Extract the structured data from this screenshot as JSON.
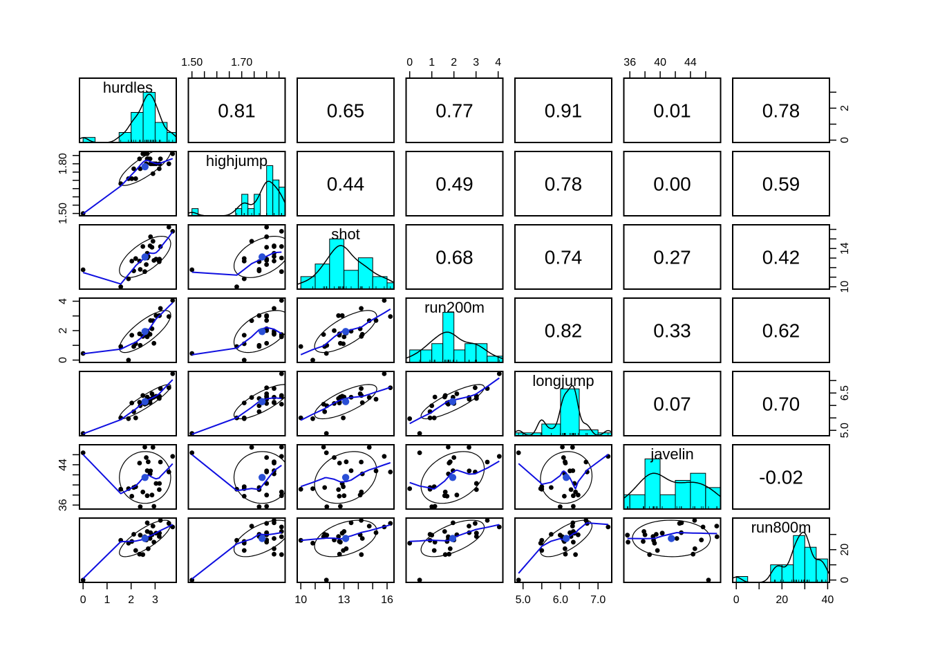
{
  "chart_data": {
    "type": "scatterplot-matrix",
    "description": "pairs.panels style matrix: histograms with density on diagonal, correlations in upper triangle, scatterplots with lowess line, correlation ellipse and mean point in lower triangle",
    "variables": [
      "hurdles",
      "highjump",
      "shot",
      "run200m",
      "longjump",
      "javelin",
      "run800m"
    ],
    "diagonal_labels": [
      "hurdles",
      "highjump",
      "shot",
      "run200m",
      "longjump",
      "javelin",
      "run800m"
    ],
    "correlations": [
      {
        "row": 0,
        "col": 1,
        "label": "0.81"
      },
      {
        "row": 0,
        "col": 2,
        "label": "0.65"
      },
      {
        "row": 0,
        "col": 3,
        "label": "0.77"
      },
      {
        "row": 0,
        "col": 4,
        "label": "0.91"
      },
      {
        "row": 0,
        "col": 5,
        "label": "0.01"
      },
      {
        "row": 0,
        "col": 6,
        "label": "0.78"
      },
      {
        "row": 1,
        "col": 2,
        "label": "0.44"
      },
      {
        "row": 1,
        "col": 3,
        "label": "0.49"
      },
      {
        "row": 1,
        "col": 4,
        "label": "0.78"
      },
      {
        "row": 1,
        "col": 5,
        "label": "0.00"
      },
      {
        "row": 1,
        "col": 6,
        "label": "0.59"
      },
      {
        "row": 2,
        "col": 3,
        "label": "0.68"
      },
      {
        "row": 2,
        "col": 4,
        "label": "0.74"
      },
      {
        "row": 2,
        "col": 5,
        "label": "0.27"
      },
      {
        "row": 2,
        "col": 6,
        "label": "0.42"
      },
      {
        "row": 3,
        "col": 4,
        "label": "0.82"
      },
      {
        "row": 3,
        "col": 5,
        "label": "0.33"
      },
      {
        "row": 3,
        "col": 6,
        "label": "0.62"
      },
      {
        "row": 4,
        "col": 5,
        "label": "0.07"
      },
      {
        "row": 4,
        "col": 6,
        "label": "0.70"
      },
      {
        "row": 5,
        "col": 6,
        "label": "-0.02"
      }
    ],
    "points": {
      "hurdles": [
        3.73,
        3.57,
        3.22,
        2.81,
        2.91,
        2.67,
        3.04,
        2.87,
        2.79,
        3.17,
        2.67,
        3.18,
        2.57,
        2.71,
        2.63,
        2.49,
        2.95,
        2.35,
        2.03,
        2.38,
        2.11,
        2.19,
        1.57,
        1.89,
        0.0
      ],
      "highjump": [
        1.86,
        1.8,
        1.83,
        1.8,
        1.74,
        1.83,
        1.8,
        1.8,
        1.83,
        1.77,
        1.86,
        1.8,
        1.86,
        1.83,
        1.8,
        1.86,
        1.8,
        1.83,
        1.71,
        1.77,
        1.77,
        1.71,
        1.68,
        1.71,
        1.5
      ],
      "shot": [
        15.8,
        16.23,
        14.2,
        15.23,
        14.76,
        13.5,
        12.88,
        14.13,
        14.28,
        12.62,
        13.01,
        12.88,
        11.58,
        13.16,
        12.32,
        14.21,
        12.75,
        12.69,
        12.68,
        11.81,
        11.66,
        12.95,
        10.0,
        10.83,
        11.78
      ],
      "run200m": [
        4.05,
        2.96,
        3.51,
        2.69,
        2.68,
        1.96,
        3.02,
        2.13,
        1.75,
        3.02,
        1.58,
        3.02,
        1.74,
        1.83,
        2.0,
        1.61,
        1.14,
        1.78,
        1.69,
        1.0,
        0.92,
        1.11,
        0.92,
        0.0,
        0.45
      ],
      "longjump": [
        7.27,
        6.71,
        6.68,
        6.25,
        6.32,
        6.33,
        6.37,
        6.47,
        6.11,
        6.28,
        6.34,
        6.37,
        6.05,
        6.12,
        6.08,
        6.4,
        6.34,
        6.13,
        6.1,
        5.99,
        5.75,
        5.5,
        5.5,
        5.47,
        4.88
      ],
      "javelin": [
        45.66,
        42.56,
        44.54,
        42.78,
        47.46,
        42.82,
        40.28,
        38.0,
        42.2,
        39.06,
        37.86,
        40.28,
        47.5,
        44.58,
        45.44,
        38.6,
        35.76,
        44.34,
        37.76,
        35.68,
        39.48,
        39.64,
        39.14,
        39.26,
        46.38
      ],
      "run800m": [
        34.92,
        37.31,
        39.23,
        31.19,
        35.53,
        37.64,
        30.89,
        29.78,
        27.38,
        28.69,
        31.94,
        30.89,
        28.5,
        20.61,
        26.37,
        16.76,
        24.95,
        17.0,
        25.41,
        29.53,
        30.08,
        19.41,
        26.13,
        24.26,
        0.0
      ]
    },
    "histogram_breaks": {
      "hurdles": {
        "start": 0,
        "width": 0.5
      },
      "highjump": {
        "start": 1.5,
        "width": 0.025
      },
      "shot": {
        "start": 10,
        "width": 1
      },
      "run200m": {
        "start": 0,
        "width": 0.5
      },
      "longjump": {
        "start": 4.5,
        "width": 0.5
      },
      "javelin": {
        "start": 34,
        "width": 2
      },
      "run800m": {
        "start": 0,
        "width": 5
      }
    },
    "axes": {
      "top": [
        {
          "col": 1,
          "ticks": [
            1.5,
            1.55,
            1.6,
            1.65,
            1.7,
            1.75,
            1.8,
            1.85
          ],
          "labels": [
            {
              "v": 1.5,
              "t": "1.50"
            },
            {
              "v": 1.7,
              "t": "1.70"
            }
          ]
        },
        {
          "col": 3,
          "ticks": [
            0,
            1,
            2,
            3,
            4
          ],
          "labels": [
            {
              "v": 0,
              "t": "0"
            },
            {
              "v": 1,
              "t": "1"
            },
            {
              "v": 2,
              "t": "2"
            },
            {
              "v": 3,
              "t": "3"
            },
            {
              "v": 4,
              "t": "4"
            }
          ]
        },
        {
          "col": 5,
          "ticks": [
            36,
            38,
            40,
            42,
            44,
            46
          ],
          "labels": [
            {
              "v": 36,
              "t": "36"
            },
            {
              "v": 40,
              "t": "40"
            },
            {
              "v": 44,
              "t": "44"
            }
          ]
        }
      ],
      "bottom": [
        {
          "col": 0,
          "ticks": [
            0,
            1,
            2,
            3
          ],
          "labels": [
            {
              "v": 0,
              "t": "0"
            },
            {
              "v": 1,
              "t": "1"
            },
            {
              "v": 2,
              "t": "2"
            },
            {
              "v": 3,
              "t": "3"
            }
          ]
        },
        {
          "col": 2,
          "ticks": [
            10,
            11,
            12,
            13,
            14,
            15,
            16
          ],
          "labels": [
            {
              "v": 10,
              "t": "10"
            },
            {
              "v": 13,
              "t": "13"
            },
            {
              "v": 16,
              "t": "16"
            }
          ]
        },
        {
          "col": 4,
          "ticks": [
            5.0,
            5.5,
            6.0,
            6.5,
            7.0
          ],
          "labels": [
            {
              "v": 5.0,
              "t": "5.0"
            },
            {
              "v": 6.0,
              "t": "6.0"
            },
            {
              "v": 7.0,
              "t": "7.0"
            }
          ]
        },
        {
          "col": 6,
          "ticks": [
            0,
            10,
            20,
            30,
            40
          ],
          "labels": [
            {
              "v": 0,
              "t": "0"
            },
            {
              "v": 20,
              "t": "20"
            },
            {
              "v": 40,
              "t": "40"
            }
          ]
        }
      ],
      "left": [
        {
          "row": 1,
          "ticks": [
            1.5,
            1.55,
            1.6,
            1.65,
            1.7,
            1.75,
            1.8,
            1.85
          ],
          "labels": [
            {
              "v": 1.5,
              "t": "1.50"
            },
            {
              "v": 1.8,
              "t": "1.80"
            }
          ]
        },
        {
          "row": 3,
          "ticks": [
            0,
            1,
            2,
            3,
            4
          ],
          "labels": [
            {
              "v": 0,
              "t": "0"
            },
            {
              "v": 2,
              "t": "2"
            },
            {
              "v": 4,
              "t": "4"
            }
          ]
        },
        {
          "row": 5,
          "ticks": [
            36,
            38,
            40,
            42,
            44,
            46
          ],
          "labels": [
            {
              "v": 36,
              "t": "36"
            },
            {
              "v": 44,
              "t": "44"
            }
          ]
        }
      ],
      "right": [
        {
          "row": 0,
          "ticks": [
            0,
            1,
            2,
            3
          ],
          "labels": [
            {
              "v": 0,
              "t": "0"
            },
            {
              "v": 2,
              "t": "2"
            }
          ]
        },
        {
          "row": 2,
          "ticks": [
            10,
            11,
            12,
            13,
            14,
            15,
            16
          ],
          "labels": [
            {
              "v": 10,
              "t": "10"
            },
            {
              "v": 14,
              "t": "14"
            }
          ]
        },
        {
          "row": 4,
          "ticks": [
            5.0,
            5.5,
            6.0,
            6.5,
            7.0
          ],
          "labels": [
            {
              "v": 5.0,
              "t": "5.0"
            },
            {
              "v": 6.5,
              "t": "6.5"
            }
          ]
        },
        {
          "row": 6,
          "ticks": [
            0,
            10,
            20,
            30
          ],
          "labels": [
            {
              "v": 0,
              "t": "0"
            },
            {
              "v": 20,
              "t": "20"
            }
          ]
        }
      ]
    },
    "colors": {
      "background": "#ffffff",
      "border": "#000000",
      "histogram_fill": "#00ffff",
      "histogram_stroke": "#000000",
      "density_curve": "#000000",
      "point_color": "#000000",
      "smooth_line": "#0f0fe0",
      "center_dot": "#2a4fd6",
      "ellipse_stroke": "#000000",
      "tick_color": "#000000"
    }
  }
}
